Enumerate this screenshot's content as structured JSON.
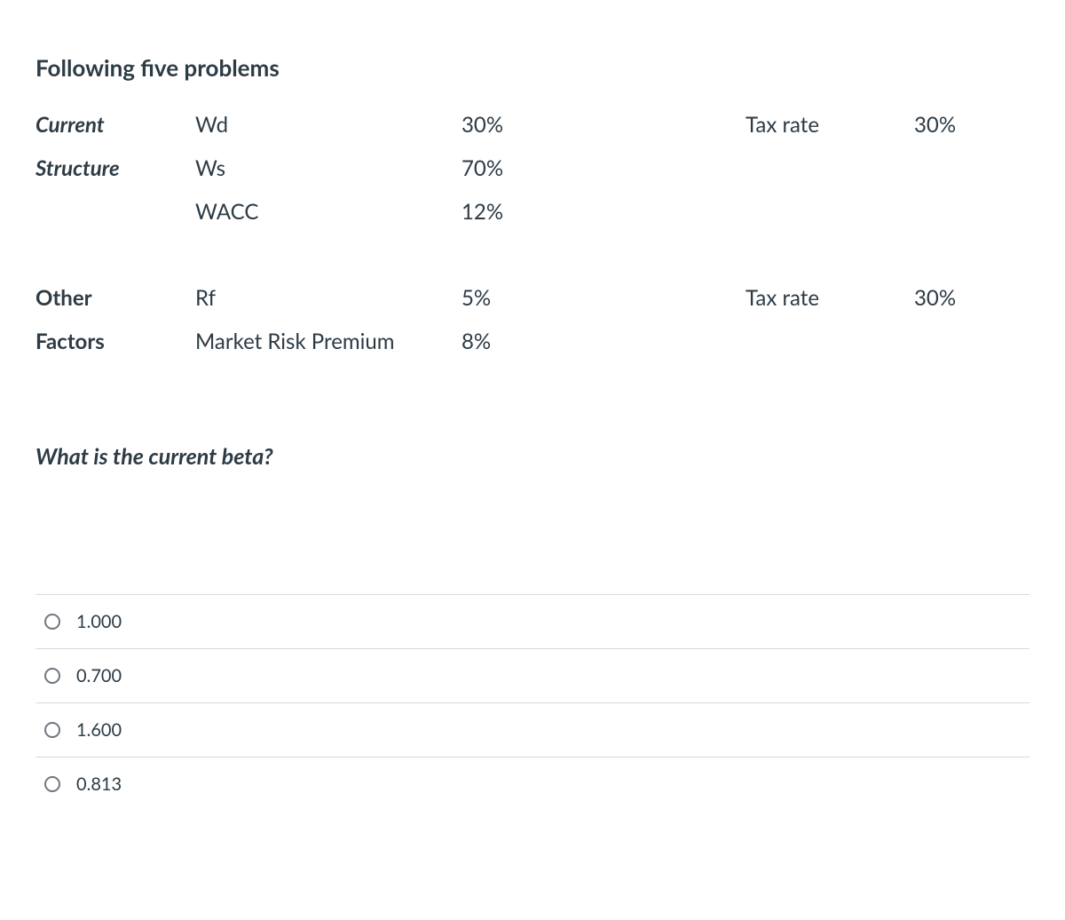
{
  "title": "Following five problems",
  "section1": {
    "row1": {
      "a": "Current",
      "b": "Wd",
      "c": "30%",
      "d": "Tax rate",
      "e": "30%"
    },
    "row2": {
      "a": "Structure",
      "b": "Ws",
      "c": "70%",
      "d": "",
      "e": ""
    },
    "row3": {
      "a": "",
      "b": "WACC",
      "c": "12%",
      "d": "",
      "e": ""
    }
  },
  "section2": {
    "row1": {
      "a": "Other",
      "b": "Rf",
      "c": "5%",
      "d": "Tax rate",
      "e": "30%"
    },
    "row2": {
      "a": "Factors",
      "b": "Market Risk Premium",
      "c": "8%",
      "d": "",
      "e": ""
    }
  },
  "question": "What is the current beta?",
  "options": [
    {
      "label": "1.000"
    },
    {
      "label": "0.700"
    },
    {
      "label": "1.600"
    },
    {
      "label": "0.813"
    }
  ],
  "colors": {
    "text": "#2d3b45",
    "border": "#d6d9dc",
    "radio_border": "#6f7780",
    "background": "#ffffff"
  }
}
